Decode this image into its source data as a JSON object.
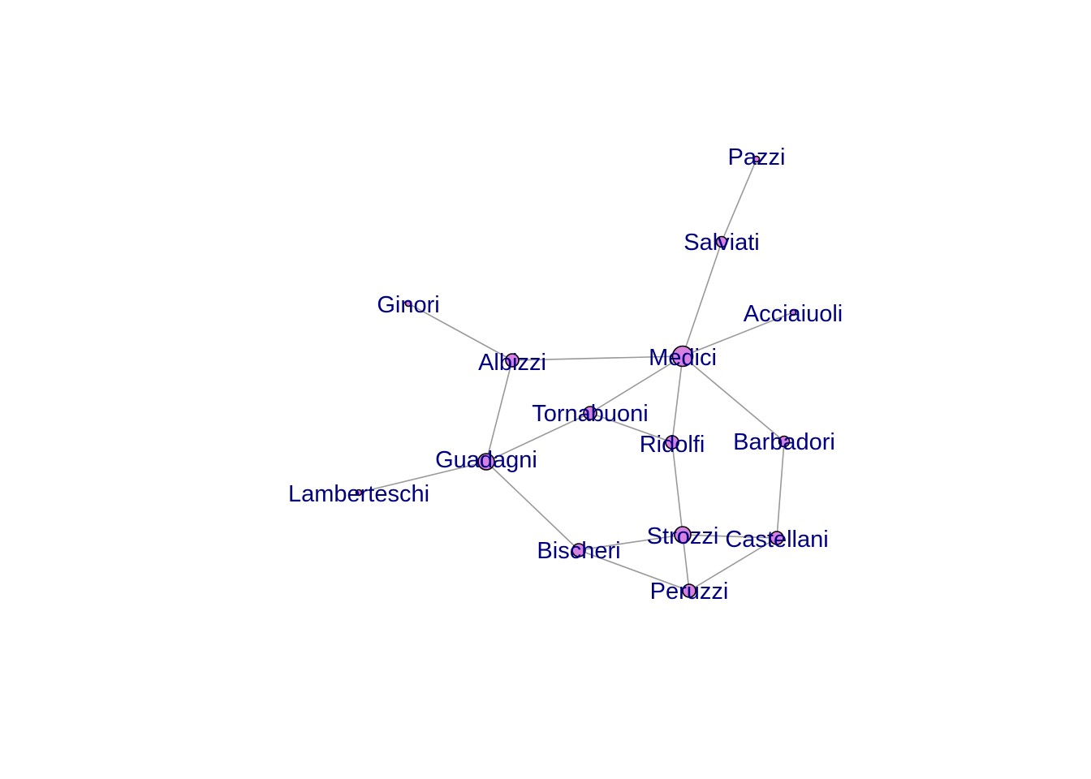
{
  "graph": {
    "colors": {
      "edge": "#999999",
      "node_fill": "#d882e0",
      "node_stroke": "#000000",
      "label": "#000080",
      "background": "#ffffff"
    },
    "nodes": [
      {
        "id": "Pazzi",
        "label": "Pazzi",
        "degree": 1
      },
      {
        "id": "Salviati",
        "label": "Salviati",
        "degree": 2
      },
      {
        "id": "Acciaiuoli",
        "label": "Acciaiuoli",
        "degree": 1
      },
      {
        "id": "Ginori",
        "label": "Ginori",
        "degree": 1
      },
      {
        "id": "Albizzi",
        "label": "Albizzi",
        "degree": 3
      },
      {
        "id": "Medici",
        "label": "Medici",
        "degree": 6
      },
      {
        "id": "Tornabuoni",
        "label": "Tornabuoni",
        "degree": 3
      },
      {
        "id": "Ridolfi",
        "label": "Ridolfi",
        "degree": 3
      },
      {
        "id": "Barbadori",
        "label": "Barbadori",
        "degree": 2
      },
      {
        "id": "Guadagni",
        "label": "Guadagni",
        "degree": 4
      },
      {
        "id": "Lamberteschi",
        "label": "Lamberteschi",
        "degree": 1
      },
      {
        "id": "Strozzi",
        "label": "Strozzi",
        "degree": 4
      },
      {
        "id": "Castellani",
        "label": "Castellani",
        "degree": 3
      },
      {
        "id": "Bischeri",
        "label": "Bischeri",
        "degree": 3
      },
      {
        "id": "Peruzzi",
        "label": "Peruzzi",
        "degree": 3
      }
    ],
    "edges": [
      [
        "Pazzi",
        "Salviati"
      ],
      [
        "Salviati",
        "Medici"
      ],
      [
        "Acciaiuoli",
        "Medici"
      ],
      [
        "Ginori",
        "Albizzi"
      ],
      [
        "Albizzi",
        "Medici"
      ],
      [
        "Albizzi",
        "Guadagni"
      ],
      [
        "Medici",
        "Tornabuoni"
      ],
      [
        "Medici",
        "Ridolfi"
      ],
      [
        "Medici",
        "Barbadori"
      ],
      [
        "Tornabuoni",
        "Ridolfi"
      ],
      [
        "Tornabuoni",
        "Guadagni"
      ],
      [
        "Guadagni",
        "Lamberteschi"
      ],
      [
        "Guadagni",
        "Bischeri"
      ],
      [
        "Ridolfi",
        "Strozzi"
      ],
      [
        "Barbadori",
        "Castellani"
      ],
      [
        "Strozzi",
        "Bischeri"
      ],
      [
        "Strozzi",
        "Peruzzi"
      ],
      [
        "Strozzi",
        "Castellani"
      ],
      [
        "Bischeri",
        "Peruzzi"
      ],
      [
        "Castellani",
        "Peruzzi"
      ]
    ]
  }
}
